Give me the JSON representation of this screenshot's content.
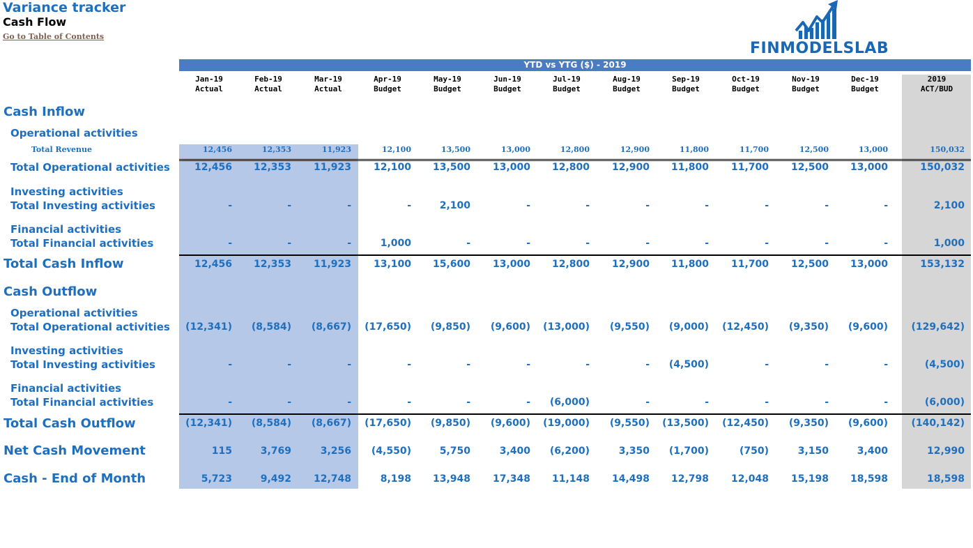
{
  "header": {
    "title": "Variance tracker",
    "subtitle": "Cash Flow",
    "toc_link": "Go to Table of Contents",
    "logo_text": "FINMODELSLAB",
    "band_title": "YTD vs YTG  ($) - 2019"
  },
  "colors": {
    "accent": "#1f6fbf",
    "band": "#4a7bc4",
    "actual_shade": "#b5c8e8",
    "total_shade": "#d6d6d6"
  },
  "columns": [
    {
      "month": "Jan-19",
      "kind": "Actual"
    },
    {
      "month": "Feb-19",
      "kind": "Actual"
    },
    {
      "month": "Mar-19",
      "kind": "Actual"
    },
    {
      "month": "Apr-19",
      "kind": "Budget"
    },
    {
      "month": "May-19",
      "kind": "Budget"
    },
    {
      "month": "Jun-19",
      "kind": "Budget"
    },
    {
      "month": "Jul-19",
      "kind": "Budget"
    },
    {
      "month": "Aug-19",
      "kind": "Budget"
    },
    {
      "month": "Sep-19",
      "kind": "Budget"
    },
    {
      "month": "Oct-19",
      "kind": "Budget"
    },
    {
      "month": "Nov-19",
      "kind": "Budget"
    },
    {
      "month": "Dec-19",
      "kind": "Budget"
    },
    {
      "month": "2019",
      "kind": "ACT/BUD"
    }
  ],
  "labels": {
    "inflow": "Cash Inflow",
    "inflow_op": "Operational activities",
    "total_revenue": "Total Revenue",
    "inflow_op_total": "Total Operational activities",
    "inflow_inv": "Investing activities",
    "inflow_inv_total": "Total Investing activities",
    "inflow_fin": "Financial activities",
    "inflow_fin_total": "Total Financial activities",
    "total_inflow": "Total Cash Inflow",
    "outflow": "Cash Outflow",
    "outflow_op": "Operational activities",
    "outflow_op_total": "Total Operational activities",
    "outflow_inv": "Investing activities",
    "outflow_inv_total": "Total Investing activities",
    "outflow_fin": "Financial activities",
    "outflow_fin_total": "Total Financial activities",
    "total_outflow": "Total Cash Outflow",
    "net": "Net Cash Movement",
    "eom": "Cash - End of Month"
  },
  "rows": {
    "total_revenue": [
      "12,456",
      "12,353",
      "11,923",
      "12,100",
      "13,500",
      "13,000",
      "12,800",
      "12,900",
      "11,800",
      "11,700",
      "12,500",
      "13,000",
      "150,032"
    ],
    "inflow_op_total": [
      "12,456",
      "12,353",
      "11,923",
      "12,100",
      "13,500",
      "13,000",
      "12,800",
      "12,900",
      "11,800",
      "11,700",
      "12,500",
      "13,000",
      "150,032"
    ],
    "inflow_inv_total": [
      "-",
      "-",
      "-",
      "-",
      "2,100",
      "-",
      "-",
      "-",
      "-",
      "-",
      "-",
      "-",
      "2,100"
    ],
    "inflow_fin_total": [
      "-",
      "-",
      "-",
      "1,000",
      "-",
      "-",
      "-",
      "-",
      "-",
      "-",
      "-",
      "-",
      "1,000"
    ],
    "total_inflow": [
      "12,456",
      "12,353",
      "11,923",
      "13,100",
      "15,600",
      "13,000",
      "12,800",
      "12,900",
      "11,800",
      "11,700",
      "12,500",
      "13,000",
      "153,132"
    ],
    "outflow_op_total": [
      "(12,341)",
      "(8,584)",
      "(8,667)",
      "(17,650)",
      "(9,850)",
      "(9,600)",
      "(13,000)",
      "(9,550)",
      "(9,000)",
      "(12,450)",
      "(9,350)",
      "(9,600)",
      "(129,642)"
    ],
    "outflow_inv_total": [
      "-",
      "-",
      "-",
      "-",
      "-",
      "-",
      "-",
      "-",
      "(4,500)",
      "-",
      "-",
      "-",
      "(4,500)"
    ],
    "outflow_fin_total": [
      "-",
      "-",
      "-",
      "-",
      "-",
      "-",
      "(6,000)",
      "-",
      "-",
      "-",
      "-",
      "-",
      "(6,000)"
    ],
    "total_outflow": [
      "(12,341)",
      "(8,584)",
      "(8,667)",
      "(17,650)",
      "(9,850)",
      "(9,600)",
      "(19,000)",
      "(9,550)",
      "(13,500)",
      "(12,450)",
      "(9,350)",
      "(9,600)",
      "(140,142)"
    ],
    "net": [
      "115",
      "3,769",
      "3,256",
      "(4,550)",
      "5,750",
      "3,400",
      "(6,200)",
      "3,350",
      "(1,700)",
      "(750)",
      "3,150",
      "3,400",
      "12,990"
    ],
    "eom": [
      "5,723",
      "9,492",
      "12,748",
      "8,198",
      "13,948",
      "17,348",
      "11,148",
      "14,498",
      "12,798",
      "12,048",
      "15,198",
      "18,598",
      "18,598"
    ]
  }
}
